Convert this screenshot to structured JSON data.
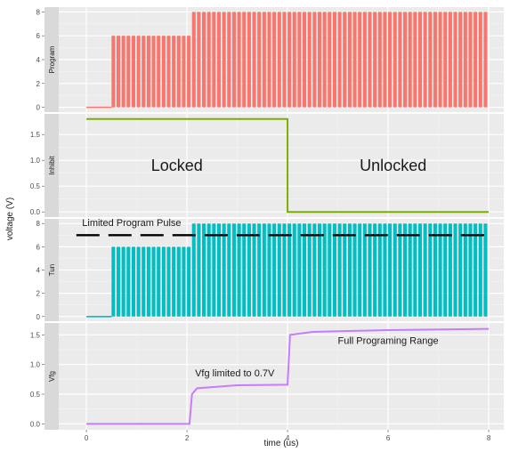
{
  "chart_data": {
    "type": "line",
    "xlabel": "time (us)",
    "ylabel": "voltage (V)",
    "x_ticks": [
      0,
      2,
      4,
      6,
      8
    ],
    "xlim": [
      -0.55,
      8.3
    ],
    "grid": true,
    "legend": "none",
    "panels": [
      {
        "name": "Program",
        "color": "#f8766d",
        "style": "pulses",
        "ylim": [
          -0.4,
          8.4
        ],
        "y_ticks": [
          0,
          2,
          4,
          6,
          8
        ],
        "baseline": 0,
        "segments": [
          {
            "x_start": 0,
            "x_end": 0.5,
            "value": 0,
            "pulsed": false
          },
          {
            "x_start": 0.5,
            "x_end": 2.1,
            "value": 6,
            "pulsed": true,
            "period": 0.1
          },
          {
            "x_start": 2.1,
            "x_end": 8,
            "value": 8,
            "pulsed": true,
            "period": 0.1
          }
        ]
      },
      {
        "name": "Inhibit",
        "color": "#7cae00",
        "style": "step",
        "ylim": [
          -0.1,
          1.9
        ],
        "y_ticks": [
          0.0,
          0.5,
          1.0,
          1.5
        ],
        "points": [
          [
            0,
            1.8
          ],
          [
            4,
            1.8
          ],
          [
            4,
            0
          ],
          [
            8,
            0
          ]
        ],
        "annotations": [
          {
            "text": "Locked",
            "x": 1.8,
            "y": 0.8,
            "size": 18
          },
          {
            "text": "Unlocked",
            "x": 6.1,
            "y": 0.8,
            "size": 18
          }
        ]
      },
      {
        "name": "Tun",
        "color": "#00bfc4",
        "style": "pulses",
        "ylim": [
          -0.4,
          8.4
        ],
        "y_ticks": [
          0,
          2,
          4,
          6,
          8
        ],
        "baseline": 0,
        "segments": [
          {
            "x_start": 0,
            "x_end": 0.5,
            "value": 0,
            "pulsed": false
          },
          {
            "x_start": 0.5,
            "x_end": 2.1,
            "value": 6,
            "pulsed": true,
            "period": 0.1
          },
          {
            "x_start": 2.1,
            "x_end": 8,
            "value": 8,
            "pulsed": true,
            "period": 0.1
          }
        ],
        "limit_line": {
          "value": 7,
          "x_start": -0.2,
          "x_end": 8,
          "dashed": true
        },
        "annotations": [
          {
            "text": "Limited Program Pulse",
            "x": 0.9,
            "y": 7.8,
            "size": 11
          }
        ]
      },
      {
        "name": "Vfg",
        "color": "#c77cff",
        "style": "step",
        "ylim": [
          -0.1,
          1.7
        ],
        "y_ticks": [
          0.0,
          0.5,
          1.0,
          1.5
        ],
        "points": [
          [
            0,
            0
          ],
          [
            2.05,
            0
          ],
          [
            2.1,
            0.5
          ],
          [
            2.2,
            0.6
          ],
          [
            3,
            0.65
          ],
          [
            4,
            0.66
          ],
          [
            4.05,
            1.5
          ],
          [
            4.5,
            1.55
          ],
          [
            6,
            1.58
          ],
          [
            8,
            1.6
          ]
        ],
        "annotations": [
          {
            "text": "Vfg limited to 0.7V",
            "x": 2.95,
            "y": 0.8,
            "size": 11
          },
          {
            "text": "Full Programing Range",
            "x": 6.0,
            "y": 1.35,
            "size": 11
          }
        ]
      }
    ]
  }
}
